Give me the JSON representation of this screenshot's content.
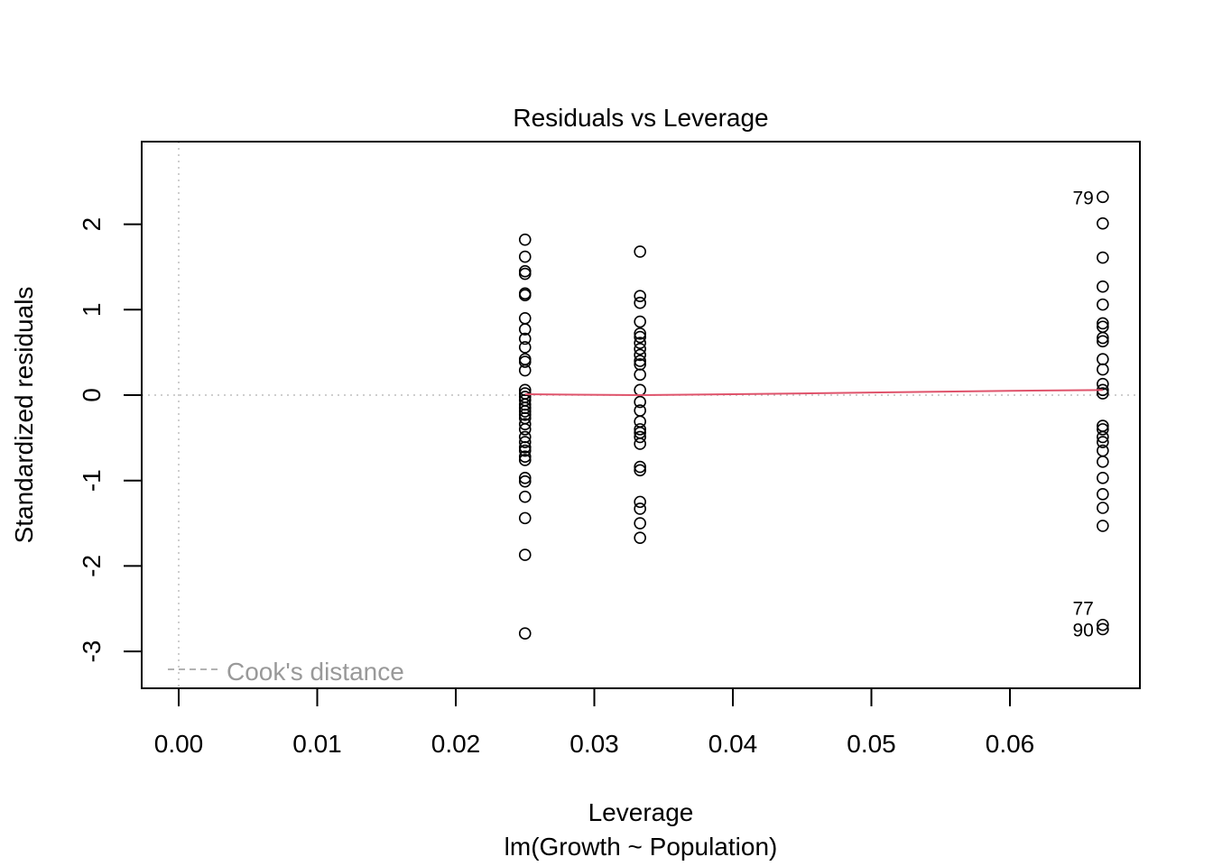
{
  "chart_data": {
    "type": "scatter",
    "title": "Residuals vs Leverage",
    "xlabel": "Leverage",
    "subtitle": "lm(Growth ~ Population)",
    "ylabel": "Standardized residuals",
    "xlim": [
      0,
      0.069
    ],
    "ylim": [
      -3.35,
      2.9
    ],
    "x_ticks": [
      "0.00",
      "0.01",
      "0.02",
      "0.03",
      "0.04",
      "0.05",
      "0.06"
    ],
    "y_ticks": [
      "-3",
      "-2",
      "-1",
      "0",
      "1",
      "2"
    ],
    "grid": false,
    "reference_lines": {
      "h": 0,
      "v": 0,
      "color": "#BEBEBE"
    },
    "legend": {
      "label": "Cook's distance",
      "placement": "bottom-left",
      "color": "#999999"
    },
    "smooth_color": "#DF536B",
    "point_groups": [
      {
        "x": 0.025,
        "y": [
          1.82,
          1.62,
          1.45,
          1.42,
          1.19,
          1.17,
          0.9,
          0.77,
          0.66,
          0.56,
          0.42,
          0.39,
          0.29,
          0.06,
          0.02,
          -0.02,
          -0.06,
          -0.11,
          -0.15,
          -0.19,
          -0.23,
          -0.27,
          -0.34,
          -0.4,
          -0.49,
          -0.55,
          -0.61,
          -0.65,
          -0.72,
          -0.76,
          -0.97,
          -1.01,
          -1.19,
          -1.44,
          -1.87,
          -2.79
        ]
      },
      {
        "x": 0.0333,
        "y": [
          1.68,
          1.16,
          1.08,
          0.86,
          0.72,
          0.68,
          0.61,
          0.54,
          0.47,
          0.4,
          0.36,
          0.24,
          0.06,
          -0.08,
          -0.18,
          -0.31,
          -0.4,
          -0.44,
          -0.49,
          -0.57,
          -0.84,
          -0.88,
          -1.25,
          -1.33,
          -1.5,
          -1.67
        ]
      },
      {
        "x": 0.0667,
        "y": [
          2.32,
          2.01,
          1.61,
          1.27,
          1.06,
          0.84,
          0.8,
          0.67,
          0.63,
          0.42,
          0.3,
          0.13,
          0.06,
          0.02,
          -0.36,
          -0.4,
          -0.49,
          -0.55,
          -0.65,
          -0.78,
          -0.97,
          -1.16,
          -1.32,
          -1.53,
          -2.69,
          -2.74
        ]
      }
    ],
    "smooth": [
      [
        0.025,
        0.01
      ],
      [
        0.0333,
        0.0
      ],
      [
        0.04,
        0.01
      ],
      [
        0.05,
        0.03
      ],
      [
        0.06,
        0.05
      ],
      [
        0.0667,
        0.06
      ]
    ],
    "point_labels": [
      {
        "label": "79",
        "x": 0.0667,
        "y": 2.32
      },
      {
        "label": "90",
        "x": 0.0667,
        "y": -2.74
      },
      {
        "label": "77",
        "x": 0.0667,
        "y": -2.69
      }
    ]
  }
}
